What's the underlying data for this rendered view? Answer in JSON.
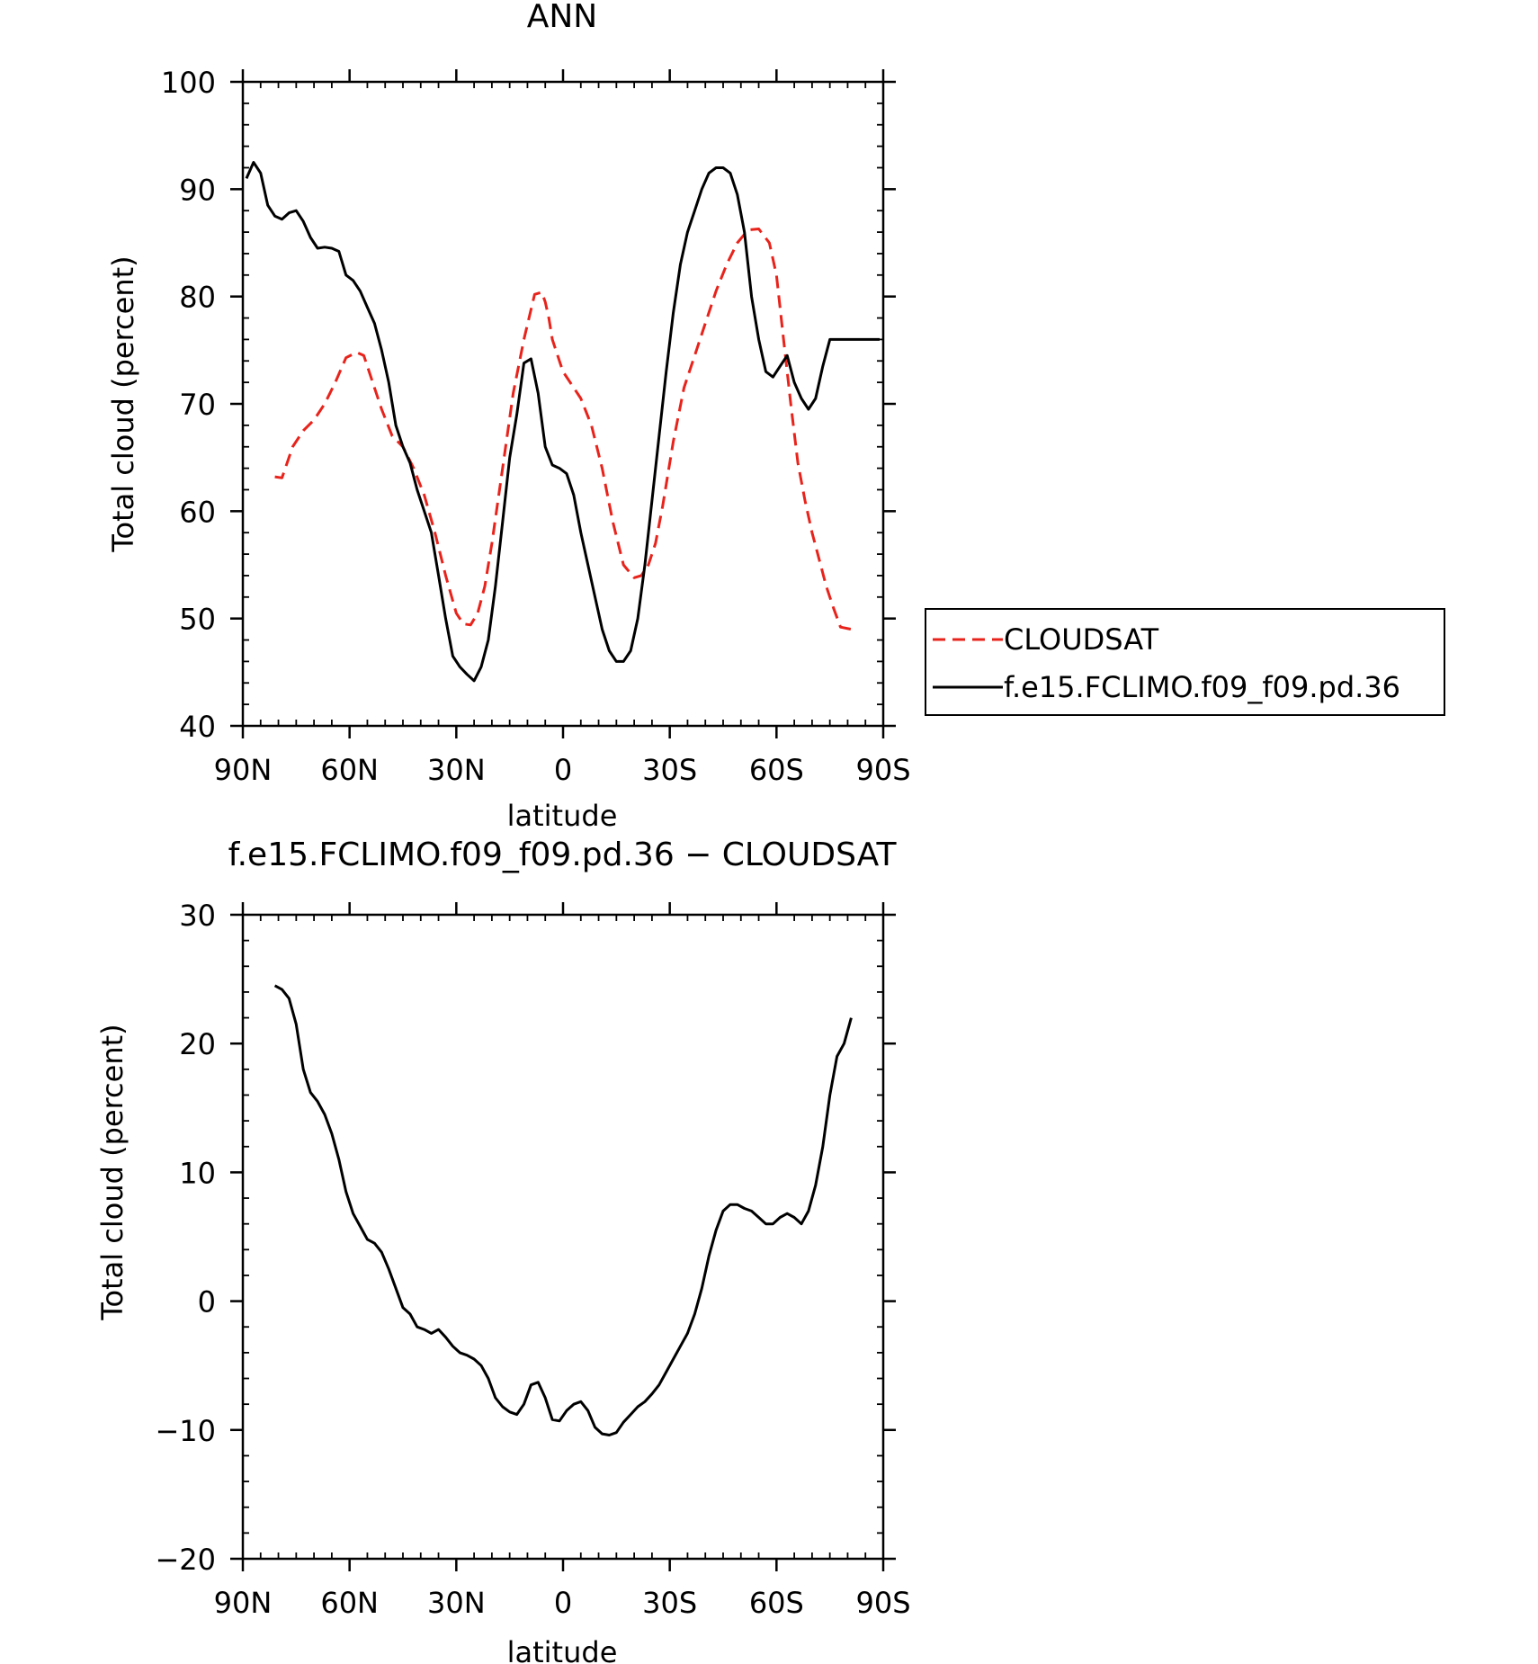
{
  "chart_data": [
    {
      "type": "line",
      "title": "ANN",
      "xlabel": "latitude",
      "ylabel": "Total cloud (percent)",
      "xlim": [
        90,
        -90
      ],
      "ylim": [
        40,
        100
      ],
      "x_ticks": [
        90,
        60,
        30,
        0,
        -30,
        -60,
        -90
      ],
      "x_tick_labels": [
        "90N",
        "60N",
        "30N",
        "0",
        "30S",
        "60S",
        "90S"
      ],
      "y_ticks": [
        40,
        50,
        60,
        70,
        80,
        90,
        100
      ],
      "y_tick_labels": [
        "40",
        "50",
        "60",
        "70",
        "80",
        "90",
        "100"
      ],
      "grid": false,
      "legend": {
        "placement": "right, outside plot",
        "entries": [
          "CLOUDSAT",
          "f.e15.FCLIMO.f09_f09.pd.36"
        ]
      },
      "series": [
        {
          "name": "CLOUDSAT",
          "color": "#e8231b",
          "dash": "dashed",
          "x": [
            81,
            79,
            76,
            73,
            70,
            67,
            64,
            61,
            58,
            56,
            54,
            51,
            48,
            45,
            42,
            39,
            36,
            33,
            30,
            28,
            26,
            24,
            22,
            20,
            17,
            14,
            11,
            8,
            6,
            5,
            4,
            3,
            1,
            0,
            -2,
            -5,
            -8,
            -11,
            -14,
            -17,
            -20,
            -22,
            -24,
            -26,
            -28,
            -31,
            -34,
            -37,
            -40,
            -43,
            -46,
            -49,
            -52,
            -55,
            -58,
            -60,
            -62,
            -64,
            -66,
            -68,
            -70,
            -72,
            -74,
            -76,
            -78,
            -81
          ],
          "y": [
            63.2,
            63.1,
            66.0,
            67.5,
            68.5,
            70.0,
            72.0,
            74.3,
            74.8,
            74.5,
            72.5,
            69.5,
            67.0,
            66.0,
            64.0,
            61.5,
            58.0,
            54.0,
            50.5,
            49.5,
            49.4,
            50.5,
            53.0,
            57.0,
            64.0,
            71.0,
            76.0,
            80.2,
            80.4,
            79.5,
            78.0,
            76.0,
            74.0,
            73.0,
            72.0,
            70.5,
            68.0,
            64.0,
            59.0,
            55.0,
            53.8,
            54.0,
            55.0,
            57.0,
            60.5,
            66.5,
            71.5,
            74.5,
            77.5,
            80.5,
            83.0,
            85.0,
            86.2,
            86.3,
            85.0,
            82.0,
            76.0,
            70.0,
            64.5,
            61.0,
            58.0,
            55.5,
            53.0,
            51.0,
            49.2,
            49.0
          ]
        },
        {
          "name": "f.e15.FCLIMO.f09_f09.pd.36",
          "color": "#000000",
          "dash": "solid",
          "x": [
            89,
            87,
            85,
            83,
            81,
            79,
            77,
            75,
            73,
            71,
            69,
            67,
            65,
            63,
            61,
            59,
            57,
            55,
            53,
            51,
            49,
            47,
            45,
            43,
            41,
            39,
            37,
            35,
            33,
            31,
            29,
            27,
            25,
            23,
            21,
            19,
            17,
            15,
            13,
            11,
            9,
            7,
            5,
            3,
            1,
            -1,
            -3,
            -5,
            -7,
            -9,
            -11,
            -13,
            -15,
            -17,
            -19,
            -21,
            -23,
            -25,
            -27,
            -29,
            -31,
            -33,
            -35,
            -37,
            -39,
            -41,
            -43,
            -45,
            -47,
            -49,
            -51,
            -53,
            -55,
            -57,
            -59,
            -61,
            -63,
            -65,
            -67,
            -69,
            -71,
            -73,
            -75,
            -77,
            -79,
            -81,
            -83,
            -85,
            -87,
            -89
          ],
          "y": [
            91.0,
            92.5,
            91.5,
            88.5,
            87.5,
            87.2,
            87.8,
            88.0,
            87.0,
            85.5,
            84.5,
            84.6,
            84.5,
            84.2,
            82.0,
            81.5,
            80.5,
            79.0,
            77.5,
            75.0,
            72.0,
            68.0,
            66.0,
            64.5,
            62.0,
            60.0,
            58.0,
            54.0,
            50.0,
            46.5,
            45.5,
            44.8,
            44.2,
            45.5,
            48.0,
            53.0,
            59.0,
            65.0,
            69.0,
            73.8,
            74.2,
            71.0,
            66.0,
            64.3,
            64.0,
            63.5,
            61.5,
            58.0,
            55.0,
            52.0,
            49.0,
            47.0,
            46.0,
            46.0,
            47.0,
            50.0,
            55.0,
            61.0,
            67.0,
            73.0,
            78.5,
            83.0,
            86.0,
            88.0,
            90.0,
            91.5,
            92.0,
            92.0,
            91.5,
            89.5,
            86.0,
            80.0,
            76.0,
            73.0,
            72.5,
            73.5,
            74.5,
            72.0,
            70.5,
            69.5,
            70.5,
            73.5,
            76.0,
            76.0,
            76.0,
            76.0,
            76.0,
            76.0,
            76.0,
            76.0
          ]
        }
      ]
    },
    {
      "type": "line",
      "title": "f.e15.FCLIMO.f09_f09.pd.36 − CLOUDSAT",
      "xlabel": "latitude",
      "ylabel": "Total cloud (percent)",
      "xlim": [
        90,
        -90
      ],
      "ylim": [
        -20,
        30
      ],
      "x_ticks": [
        90,
        60,
        30,
        0,
        -30,
        -60,
        -90
      ],
      "x_tick_labels": [
        "90N",
        "60N",
        "30N",
        "0",
        "30S",
        "60S",
        "90S"
      ],
      "y_ticks": [
        -20,
        -10,
        0,
        10,
        20,
        30
      ],
      "y_tick_labels": [
        "−20",
        "−10",
        "0",
        "10",
        "20",
        "30"
      ],
      "grid": false,
      "series": [
        {
          "color": "#000000",
          "dash": "solid",
          "x": [
            81,
            79,
            77,
            75,
            73,
            71,
            69,
            67,
            65,
            63,
            61,
            59,
            57,
            55,
            53,
            51,
            49,
            47,
            45,
            43,
            41,
            39,
            37,
            35,
            33,
            31,
            29,
            27,
            25,
            23,
            21,
            19,
            17,
            15,
            13,
            11,
            9,
            7,
            5,
            3,
            1,
            -1,
            -3,
            -5,
            -7,
            -9,
            -11,
            -13,
            -15,
            -17,
            -19,
            -21,
            -23,
            -25,
            -27,
            -29,
            -31,
            -33,
            -35,
            -37,
            -39,
            -41,
            -43,
            -45,
            -47,
            -49,
            -51,
            -53,
            -55,
            -57,
            -59,
            -61,
            -63,
            -65,
            -67,
            -69,
            -71,
            -73,
            -75,
            -77,
            -79,
            -81
          ],
          "y": [
            24.5,
            24.2,
            23.5,
            21.5,
            18.0,
            16.2,
            15.5,
            14.5,
            13.0,
            11.0,
            8.5,
            6.8,
            5.8,
            4.8,
            4.5,
            3.8,
            2.5,
            1.0,
            -0.5,
            -1.0,
            -2.0,
            -2.2,
            -2.5,
            -2.2,
            -2.8,
            -3.5,
            -4.0,
            -4.2,
            -4.5,
            -5.0,
            -6.0,
            -7.5,
            -8.2,
            -8.6,
            -8.8,
            -8.0,
            -6.5,
            -6.3,
            -7.5,
            -9.2,
            -9.3,
            -8.5,
            -8.0,
            -7.8,
            -8.5,
            -9.8,
            -10.3,
            -10.4,
            -10.2,
            -9.4,
            -8.8,
            -8.2,
            -7.8,
            -7.2,
            -6.5,
            -5.5,
            -4.5,
            -3.5,
            -2.5,
            -1.0,
            1.0,
            3.5,
            5.5,
            7.0,
            7.5,
            7.5,
            7.2,
            7.0,
            6.5,
            6.0,
            6.0,
            6.5,
            6.8,
            6.5,
            6.0,
            7.0,
            9.0,
            12.0,
            16.0,
            19.0,
            20.0,
            22.0
          ]
        }
      ]
    }
  ]
}
